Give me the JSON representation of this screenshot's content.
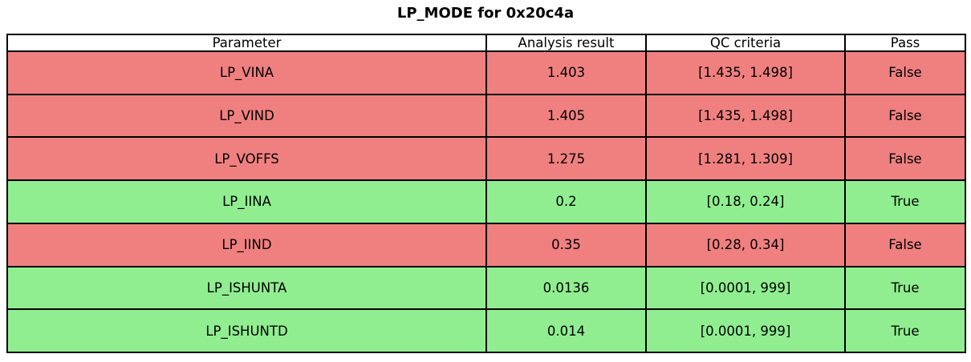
{
  "title": "LP_MODE for 0x20c4a",
  "colors": {
    "pass_row": "#90ee90",
    "fail_row": "#f08080",
    "header_row": "#ffffff",
    "border": "#000000",
    "text": "#000000"
  },
  "chart_data": {
    "type": "table",
    "title": "LP_MODE for 0x20c4a",
    "columns": [
      "Parameter",
      "Analysis result",
      "QC criteria",
      "Pass"
    ],
    "rows": [
      {
        "parameter": "LP_VINA",
        "analysis_result": "1.403",
        "qc_criteria": "[1.435, 1.498]",
        "pass": "False",
        "status": "fail"
      },
      {
        "parameter": "LP_VIND",
        "analysis_result": "1.405",
        "qc_criteria": "[1.435, 1.498]",
        "pass": "False",
        "status": "fail"
      },
      {
        "parameter": "LP_VOFFS",
        "analysis_result": "1.275",
        "qc_criteria": "[1.281, 1.309]",
        "pass": "False",
        "status": "fail"
      },
      {
        "parameter": "LP_IINA",
        "analysis_result": "0.2",
        "qc_criteria": "[0.18, 0.24]",
        "pass": "True",
        "status": "pass"
      },
      {
        "parameter": "LP_IIND",
        "analysis_result": "0.35",
        "qc_criteria": "[0.28, 0.34]",
        "pass": "False",
        "status": "fail"
      },
      {
        "parameter": "LP_ISHUNTA",
        "analysis_result": "0.0136",
        "qc_criteria": "[0.0001, 999]",
        "pass": "True",
        "status": "pass"
      },
      {
        "parameter": "LP_ISHUNTD",
        "analysis_result": "0.014",
        "qc_criteria": "[0.0001, 999]",
        "pass": "True",
        "status": "pass"
      }
    ]
  }
}
